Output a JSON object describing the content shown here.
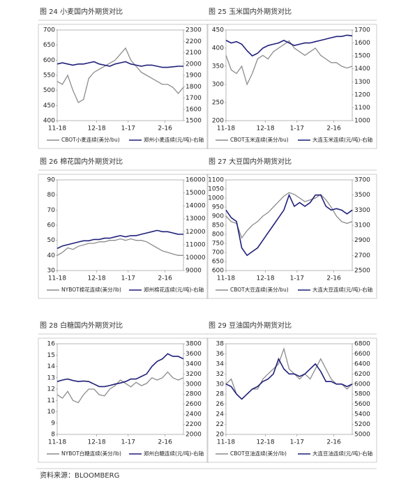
{
  "chart_data": [
    {
      "type": "line",
      "title": "图 24 小麦国内外期货对比",
      "x": [
        0,
        1,
        2,
        3,
        4,
        5,
        6,
        7,
        8,
        9,
        10,
        11,
        12,
        13,
        14,
        15,
        16,
        17,
        18,
        19,
        20,
        21,
        22,
        23,
        24
      ],
      "xlim": [
        0,
        24
      ],
      "xticks": [
        {
          "value": 0,
          "label": "11-18"
        },
        {
          "value": 7.5,
          "label": "12-18"
        },
        {
          "value": 13.5,
          "label": "1-17"
        },
        {
          "value": 20.5,
          "label": "2-16"
        }
      ],
      "ylim": [
        400,
        700
      ],
      "yticks": [
        400,
        450,
        500,
        550,
        600,
        650,
        700
      ],
      "y2lim": [
        1500,
        2300
      ],
      "y2ticks": [
        1500,
        1600,
        1700,
        1800,
        1900,
        2000,
        2100,
        2200,
        2300
      ],
      "series": [
        {
          "name": "CBOT小麦连续(美分/bu)",
          "color": "#8c8c8c",
          "values": [
            530,
            520,
            550,
            500,
            460,
            470,
            540,
            560,
            570,
            580,
            590,
            600,
            620,
            640,
            600,
            580,
            560,
            550,
            540,
            530,
            520,
            520,
            510,
            490,
            510
          ]
        },
        {
          "name": "郑州小麦连续(元/吨)-右轴",
          "color": "#1f1f7a",
          "axis": "y2",
          "values": [
            2000,
            2010,
            2000,
            1990,
            2000,
            2000,
            2010,
            2020,
            2000,
            1990,
            1980,
            2000,
            2010,
            2020,
            2000,
            1990,
            1980,
            1990,
            1990,
            1980,
            1970,
            1970,
            1975,
            1980,
            1980
          ]
        }
      ]
    },
    {
      "type": "line",
      "title": "图 25 玉米国内外期货对比",
      "x": [
        0,
        1,
        2,
        3,
        4,
        5,
        6,
        7,
        8,
        9,
        10,
        11,
        12,
        13,
        14,
        15,
        16,
        17,
        18,
        19,
        20,
        21,
        22,
        23,
        24
      ],
      "xlim": [
        0,
        24
      ],
      "xticks": [
        {
          "value": 0,
          "label": "11-18"
        },
        {
          "value": 7.5,
          "label": "12-18"
        },
        {
          "value": 13.5,
          "label": "1-17"
        },
        {
          "value": 20.5,
          "label": "2-16"
        }
      ],
      "ylim": [
        200,
        450
      ],
      "yticks": [
        200,
        250,
        300,
        350,
        400,
        450
      ],
      "y2lim": [
        1000,
        1700
      ],
      "y2ticks": [
        1000,
        1100,
        1200,
        1300,
        1400,
        1500,
        1600,
        1700
      ],
      "series": [
        {
          "name": "CBOT玉米连续(美分/bu)",
          "color": "#8c8c8c",
          "values": [
            380,
            340,
            330,
            350,
            300,
            330,
            370,
            380,
            370,
            390,
            400,
            410,
            420,
            400,
            390,
            380,
            390,
            400,
            380,
            370,
            360,
            360,
            350,
            345,
            350
          ]
        },
        {
          "name": "大连玉米连续(元/吨)-右轴",
          "color": "#1f1f7a",
          "axis": "y2",
          "values": [
            1620,
            1600,
            1610,
            1590,
            1540,
            1500,
            1520,
            1560,
            1580,
            1590,
            1600,
            1620,
            1600,
            1580,
            1590,
            1600,
            1600,
            1610,
            1620,
            1630,
            1640,
            1650,
            1650,
            1660,
            1655
          ]
        }
      ]
    },
    {
      "type": "line",
      "title": "图 26 棉花国内外期货对比",
      "x": [
        0,
        1,
        2,
        3,
        4,
        5,
        6,
        7,
        8,
        9,
        10,
        11,
        12,
        13,
        14,
        15,
        16,
        17,
        18,
        19,
        20,
        21,
        22,
        23,
        24
      ],
      "xlim": [
        0,
        24
      ],
      "xticks": [
        {
          "value": 0,
          "label": "11-18"
        },
        {
          "value": 7.5,
          "label": "12-18"
        },
        {
          "value": 13.5,
          "label": "1-17"
        },
        {
          "value": 20.5,
          "label": "2-16"
        }
      ],
      "ylim": [
        30,
        90
      ],
      "yticks": [
        30,
        40,
        50,
        60,
        70,
        80,
        90
      ],
      "y2lim": [
        9000,
        16000
      ],
      "y2ticks": [
        9000,
        10000,
        11000,
        12000,
        13000,
        14000,
        15000,
        16000
      ],
      "series": [
        {
          "name": "NYBOT棉花连续(美分/lb)",
          "color": "#8c8c8c",
          "values": [
            40,
            42,
            45,
            44,
            46,
            47,
            48,
            48,
            49,
            49,
            50,
            50,
            51,
            50,
            51,
            50,
            50,
            49,
            47,
            45,
            43,
            42,
            41,
            40,
            40
          ]
        },
        {
          "name": "郑州棉花连续(元/吨)-右轴",
          "color": "#1f1f7a",
          "axis": "y2",
          "values": [
            10700,
            10900,
            11000,
            11100,
            11200,
            11300,
            11300,
            11400,
            11400,
            11500,
            11500,
            11600,
            11700,
            11600,
            11700,
            11700,
            11800,
            11900,
            12000,
            12100,
            12000,
            12000,
            11900,
            11800,
            11800
          ]
        }
      ]
    },
    {
      "type": "line",
      "title": "图 27 大豆国内外期货对比",
      "x": [
        0,
        1,
        2,
        3,
        4,
        5,
        6,
        7,
        8,
        9,
        10,
        11,
        12,
        13,
        14,
        15,
        16,
        17,
        18,
        19,
        20,
        21,
        22,
        23,
        24
      ],
      "xlim": [
        0,
        24
      ],
      "xticks": [
        {
          "value": 0,
          "label": "11-18"
        },
        {
          "value": 7.5,
          "label": "12-18"
        },
        {
          "value": 13.5,
          "label": "1-17"
        },
        {
          "value": 20.5,
          "label": "2-16"
        }
      ],
      "ylim": [
        600,
        1100
      ],
      "yticks": [
        600,
        650,
        700,
        750,
        800,
        850,
        900,
        950,
        1000,
        1050,
        1100
      ],
      "y2lim": [
        2500,
        3700
      ],
      "y2ticks": [
        2500,
        2700,
        2900,
        3100,
        3300,
        3500,
        3700
      ],
      "series": [
        {
          "name": "CBOT大豆连续(美分/bu)",
          "color": "#8c8c8c",
          "values": [
            900,
            870,
            860,
            780,
            820,
            850,
            870,
            900,
            920,
            950,
            980,
            1010,
            1030,
            1020,
            1000,
            980,
            990,
            1000,
            1020,
            990,
            950,
            900,
            870,
            860,
            870
          ]
        },
        {
          "name": "大连大豆连续(元/吨)-右轴",
          "color": "#1f1f7a",
          "axis": "y2",
          "values": [
            3300,
            3200,
            3150,
            2800,
            2700,
            2750,
            2800,
            2900,
            3000,
            3100,
            3200,
            3300,
            3500,
            3350,
            3400,
            3350,
            3400,
            3500,
            3500,
            3350,
            3300,
            3320,
            3300,
            3250,
            3300
          ]
        }
      ]
    },
    {
      "type": "line",
      "title": "图 28 白糖国内外期货对比",
      "x": [
        0,
        1,
        2,
        3,
        4,
        5,
        6,
        7,
        8,
        9,
        10,
        11,
        12,
        13,
        14,
        15,
        16,
        17,
        18,
        19,
        20,
        21,
        22,
        23,
        24
      ],
      "xlim": [
        0,
        24
      ],
      "xticks": [
        {
          "value": 0,
          "label": "11-18"
        },
        {
          "value": 7.5,
          "label": "12-18"
        },
        {
          "value": 13.5,
          "label": "1-17"
        },
        {
          "value": 20.5,
          "label": "2-16"
        }
      ],
      "ylim": [
        8,
        16
      ],
      "yticks": [
        8,
        9,
        10,
        11,
        12,
        13,
        14,
        15,
        16
      ],
      "y2lim": [
        2000,
        3800
      ],
      "y2ticks": [
        2000,
        2200,
        2400,
        2600,
        2800,
        3000,
        3200,
        3400,
        3600,
        3800
      ],
      "series": [
        {
          "name": "NYBOT白糖连续(美分/lb)",
          "color": "#8c8c8c",
          "values": [
            11.5,
            11.2,
            11.8,
            11,
            10.8,
            11.5,
            12,
            12,
            11.5,
            11.4,
            12,
            12.3,
            12.8,
            12.5,
            12.2,
            12.6,
            12.3,
            12.5,
            13,
            12.8,
            13,
            13.5,
            13,
            12.8,
            13
          ]
        },
        {
          "name": "郑州白糖连续(元/吨)-右轴",
          "color": "#1f1f7a",
          "axis": "y2",
          "values": [
            3050,
            3080,
            3100,
            3070,
            3050,
            3060,
            3050,
            3000,
            2950,
            2950,
            2970,
            3000,
            3020,
            3050,
            3100,
            3100,
            3150,
            3200,
            3350,
            3450,
            3500,
            3600,
            3550,
            3550,
            3500
          ]
        }
      ]
    },
    {
      "type": "line",
      "title": "图 29 豆油国内外期货对比",
      "x": [
        0,
        1,
        2,
        3,
        4,
        5,
        6,
        7,
        8,
        9,
        10,
        11,
        12,
        13,
        14,
        15,
        16,
        17,
        18,
        19,
        20,
        21,
        22,
        23,
        24
      ],
      "xlim": [
        0,
        24
      ],
      "xticks": [
        {
          "value": 0,
          "label": "11-18"
        },
        {
          "value": 7.5,
          "label": "12-18"
        },
        {
          "value": 13.5,
          "label": "1-17"
        },
        {
          "value": 20.5,
          "label": "2-16"
        }
      ],
      "ylim": [
        20,
        38
      ],
      "yticks": [
        20,
        22,
        24,
        26,
        28,
        30,
        32,
        34,
        36,
        38
      ],
      "y2lim": [
        5000,
        6800
      ],
      "y2ticks": [
        5000,
        5200,
        5400,
        5600,
        5800,
        6000,
        6200,
        6400,
        6600,
        6800
      ],
      "series": [
        {
          "name": "CBOT豆油连续(美分/lb)",
          "color": "#8c8c8c",
          "values": [
            30,
            31,
            28,
            27,
            28,
            29,
            29,
            31,
            32,
            33,
            34,
            37,
            33,
            32,
            31,
            32,
            31,
            33,
            35,
            33,
            31,
            30,
            30,
            29,
            30
          ]
        },
        {
          "name": "大连豆油连续(元/吨)-右轴",
          "color": "#1f1f7a",
          "axis": "y2",
          "values": [
            6000,
            5950,
            5800,
            5700,
            5800,
            5900,
            5950,
            6050,
            6100,
            6200,
            6500,
            6300,
            6200,
            6200,
            6150,
            6200,
            6300,
            6400,
            6250,
            6050,
            6050,
            6000,
            6000,
            5950,
            6000
          ]
        }
      ]
    }
  ],
  "source": "资料来源：BLOOMBERG"
}
